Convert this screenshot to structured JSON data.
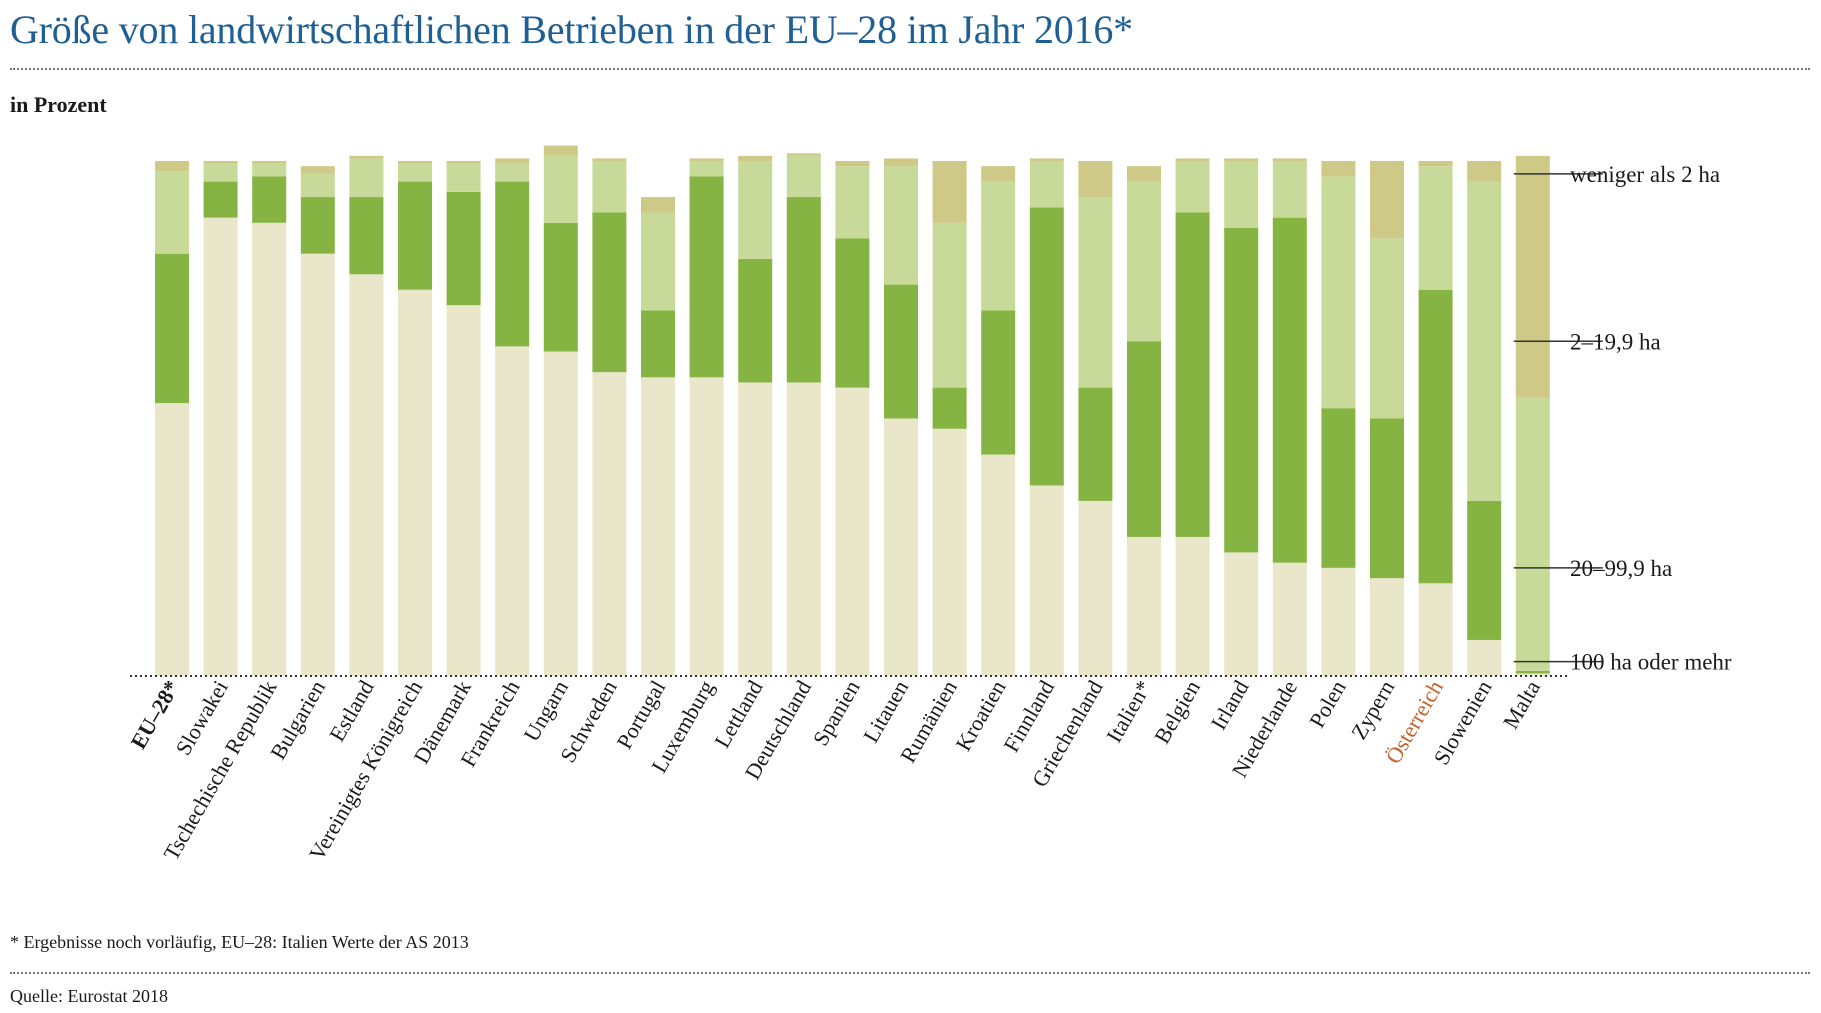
{
  "title": "Größe von landwirtschaftlichen Betrieben in der EU–28 im Jahr 2016*",
  "subtitle": "in Prozent",
  "footnote": "* Ergebnisse noch vorläufig, EU–28: Italien Werte der AS 2013",
  "source": "Quelle: Eurostat 2018",
  "colors": {
    "lt2": "#cec986",
    "s2_19": "#c7da99",
    "s20_99": "#86b443",
    "ge100": "#e9e6c9",
    "highlight": "#c4622d",
    "title": "#1f5f94"
  },
  "chart_data": {
    "type": "bar",
    "stacked": true,
    "ylim": [
      0,
      100
    ],
    "grid": false,
    "legend": "right",
    "categories": [
      "EU–28*",
      "Slowakei",
      "Tschechische Republik",
      "Bulgarien",
      "Estland",
      "Vereinigtes Königreich",
      "Dänemark",
      "Frankreich",
      "Ungarn",
      "Schweden",
      "Portugal",
      "Luxemburg",
      "Lettland",
      "Deutschland",
      "Spanien",
      "Litauen",
      "Rumänien",
      "Kroatien",
      "Finnland",
      "Griechenland",
      "Italien*",
      "Belgien",
      "Irland",
      "Niederlande",
      "Polen",
      "Zypern",
      "Österreich",
      "Slowenien",
      "Malta"
    ],
    "bold_category": "EU–28*",
    "highlight_category": "Österreich",
    "series": [
      {
        "name": "100 ha oder mehr",
        "values": [
          53,
          89,
          88,
          82,
          78,
          75,
          72,
          64,
          63,
          59,
          58,
          58,
          57,
          57,
          56,
          50,
          48,
          43,
          37,
          34,
          27,
          27,
          24,
          22,
          21,
          19,
          18,
          7,
          0.5
        ]
      },
      {
        "name": "20–99,9 ha",
        "values": [
          29,
          7,
          9,
          11,
          15,
          21,
          22,
          32,
          25,
          31,
          13,
          39,
          24,
          36,
          29,
          26,
          8,
          28,
          54,
          22,
          38,
          63,
          63,
          67,
          31,
          31,
          57,
          27,
          0.5
        ]
      },
      {
        "name": "2–19,9 ha",
        "values": [
          16,
          3.5,
          2.5,
          4.5,
          7.5,
          3.5,
          5.5,
          3.5,
          13,
          10,
          19,
          3,
          19,
          8,
          14,
          23,
          32,
          25,
          9,
          37,
          31,
          10,
          13,
          11,
          45,
          35,
          24,
          62,
          53
        ]
      },
      {
        "name": "weniger als 2 ha",
        "values": [
          2,
          0.5,
          0.5,
          1.5,
          0.5,
          0.5,
          0.5,
          1,
          2,
          0.5,
          3,
          0.5,
          1,
          0.5,
          1,
          1.5,
          12,
          3,
          0.5,
          7,
          3,
          0.5,
          0.5,
          0.5,
          3,
          15,
          1,
          4,
          47
        ]
      }
    ]
  }
}
